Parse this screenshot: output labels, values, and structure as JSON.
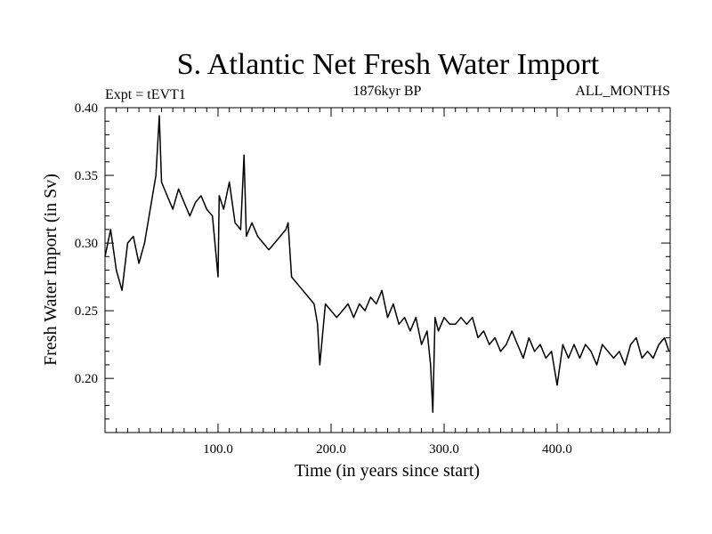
{
  "chart_data": {
    "type": "line",
    "title": "S. Atlantic Net Fresh Water Import",
    "subtitle_left": "Expt = tEVT1",
    "subtitle_center": "1876kyr BP",
    "subtitle_right": "ALL_MONTHS",
    "xlabel": "Time (in years since start)",
    "ylabel": "Fresh Water Import (in Sv)",
    "xlim": [
      0,
      500
    ],
    "ylim": [
      0.16,
      0.4
    ],
    "x_ticks": [
      100,
      200,
      300,
      400
    ],
    "x_tick_labels": [
      "100.0",
      "200.0",
      "300.0",
      "400.0"
    ],
    "y_ticks": [
      0.2,
      0.25,
      0.3,
      0.35,
      0.4
    ],
    "y_tick_labels": [
      "0.20",
      "0.25",
      "0.30",
      "0.35",
      "0.40"
    ],
    "series": [
      {
        "name": "S. Atlantic Net Fresh Water Import",
        "x": [
          0,
          5,
          10,
          15,
          20,
          25,
          30,
          35,
          40,
          45,
          48,
          50,
          55,
          60,
          65,
          70,
          75,
          80,
          85,
          90,
          95,
          100,
          101,
          105,
          110,
          115,
          120,
          123,
          125,
          130,
          135,
          140,
          145,
          150,
          155,
          160,
          162,
          165,
          170,
          175,
          180,
          185,
          188,
          190,
          195,
          200,
          205,
          210,
          215,
          220,
          225,
          230,
          235,
          240,
          245,
          250,
          255,
          260,
          265,
          270,
          275,
          280,
          285,
          288,
          290,
          292,
          295,
          300,
          305,
          310,
          315,
          320,
          325,
          330,
          335,
          340,
          345,
          350,
          355,
          360,
          365,
          370,
          375,
          380,
          385,
          390,
          395,
          400,
          405,
          410,
          415,
          420,
          425,
          430,
          435,
          440,
          445,
          450,
          455,
          460,
          465,
          470,
          475,
          480,
          485,
          490,
          495,
          499
        ],
        "values": [
          0.29,
          0.31,
          0.28,
          0.265,
          0.3,
          0.305,
          0.285,
          0.3,
          0.325,
          0.35,
          0.394,
          0.345,
          0.335,
          0.325,
          0.34,
          0.33,
          0.32,
          0.33,
          0.335,
          0.325,
          0.32,
          0.275,
          0.335,
          0.325,
          0.345,
          0.315,
          0.31,
          0.365,
          0.305,
          0.315,
          0.305,
          0.3,
          0.295,
          0.3,
          0.305,
          0.31,
          0.315,
          0.275,
          0.27,
          0.265,
          0.26,
          0.255,
          0.24,
          0.21,
          0.255,
          0.25,
          0.245,
          0.25,
          0.255,
          0.245,
          0.255,
          0.25,
          0.26,
          0.255,
          0.265,
          0.245,
          0.255,
          0.24,
          0.245,
          0.235,
          0.245,
          0.225,
          0.235,
          0.21,
          0.175,
          0.245,
          0.235,
          0.245,
          0.24,
          0.24,
          0.245,
          0.24,
          0.245,
          0.23,
          0.235,
          0.225,
          0.23,
          0.22,
          0.225,
          0.235,
          0.225,
          0.215,
          0.23,
          0.22,
          0.225,
          0.215,
          0.22,
          0.195,
          0.225,
          0.215,
          0.225,
          0.215,
          0.225,
          0.22,
          0.21,
          0.225,
          0.22,
          0.215,
          0.22,
          0.21,
          0.225,
          0.23,
          0.215,
          0.22,
          0.215,
          0.225,
          0.23,
          0.22
        ]
      }
    ]
  }
}
